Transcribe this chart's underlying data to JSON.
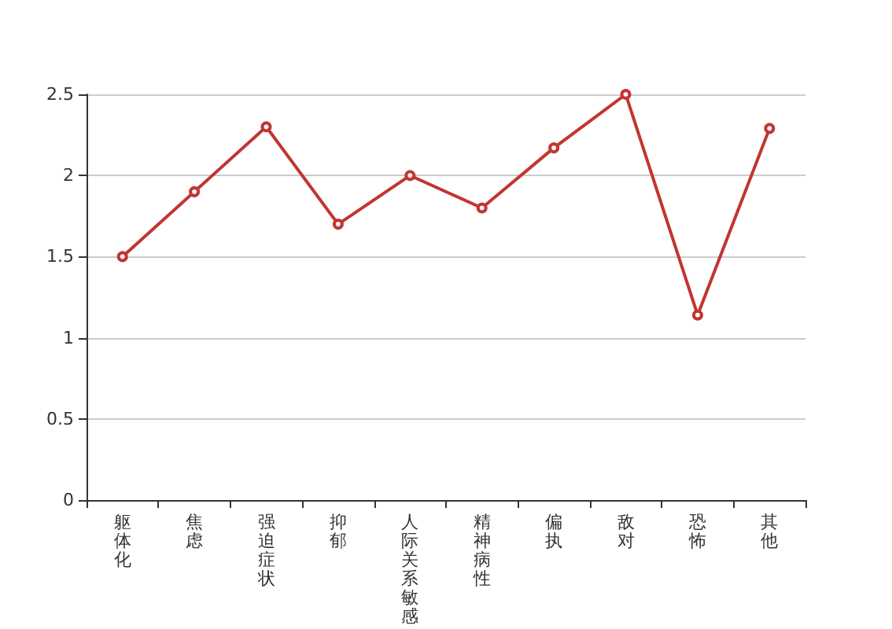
{
  "chart_data": {
    "type": "line",
    "categories": [
      "躯体化",
      "焦虑",
      "强迫症状",
      "抑郁",
      "人际关系敏感",
      "精神病性",
      "偏执",
      "敌对",
      "恐怖",
      "其他"
    ],
    "series": [
      {
        "color": "#c23531",
        "values": [
          1.5,
          1.9,
          2.3,
          1.7,
          2.0,
          1.8,
          2.17,
          2.5,
          1.14,
          2.29
        ]
      }
    ],
    "ylim": [
      0,
      2.5
    ],
    "yticks": [
      0,
      0.5,
      1,
      1.5,
      2,
      2.5
    ],
    "grid": "y",
    "marker": "circle",
    "line_style": "solid"
  }
}
